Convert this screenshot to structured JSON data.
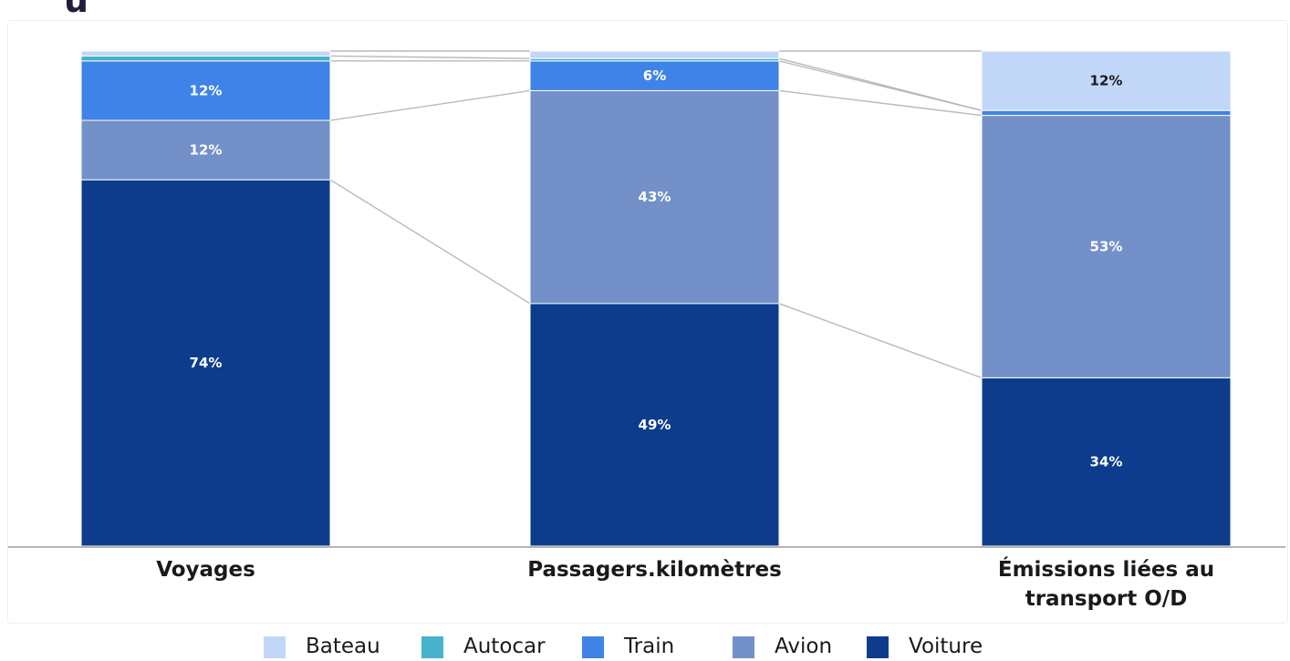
{
  "chart_data": {
    "type": "bar",
    "stacked": true,
    "percent": true,
    "title": "",
    "xlabel": "",
    "ylabel": "",
    "ylim": [
      0,
      100
    ],
    "categories": [
      "Voyages",
      "Passagers.kilomètres",
      "Émissions liées au transport O/D"
    ],
    "category_lines": [
      [
        "Voyages"
      ],
      [
        "Passagers.kilomètres"
      ],
      [
        "Émissions liées au",
        "transport O/D"
      ]
    ],
    "series": [
      {
        "name": "Voiture",
        "color": "#0d3c8c",
        "values": [
          74,
          49,
          34
        ],
        "labels": [
          "74%",
          "49%",
          "34%"
        ]
      },
      {
        "name": "Avion",
        "color": "#7390c9",
        "values": [
          12,
          43,
          53
        ],
        "labels": [
          "12%",
          "43%",
          "53%"
        ]
      },
      {
        "name": "Train",
        "color": "#3f83e8",
        "values": [
          12,
          6,
          1
        ],
        "labels": [
          "12%",
          "6%",
          ""
        ]
      },
      {
        "name": "Autocar",
        "color": "#46b2cc",
        "values": [
          1,
          0.5,
          0
        ],
        "labels": [
          "",
          "",
          ""
        ]
      },
      {
        "name": "Bateau",
        "color": "#c2d6f7",
        "values": [
          1,
          1.5,
          12
        ],
        "labels": [
          "",
          "",
          "12%"
        ]
      }
    ],
    "legend": {
      "position": "bottom",
      "order": [
        "Bateau",
        "Autocar",
        "Train",
        "Avion",
        "Voiture"
      ]
    },
    "connector_lines": true,
    "grid": false
  }
}
